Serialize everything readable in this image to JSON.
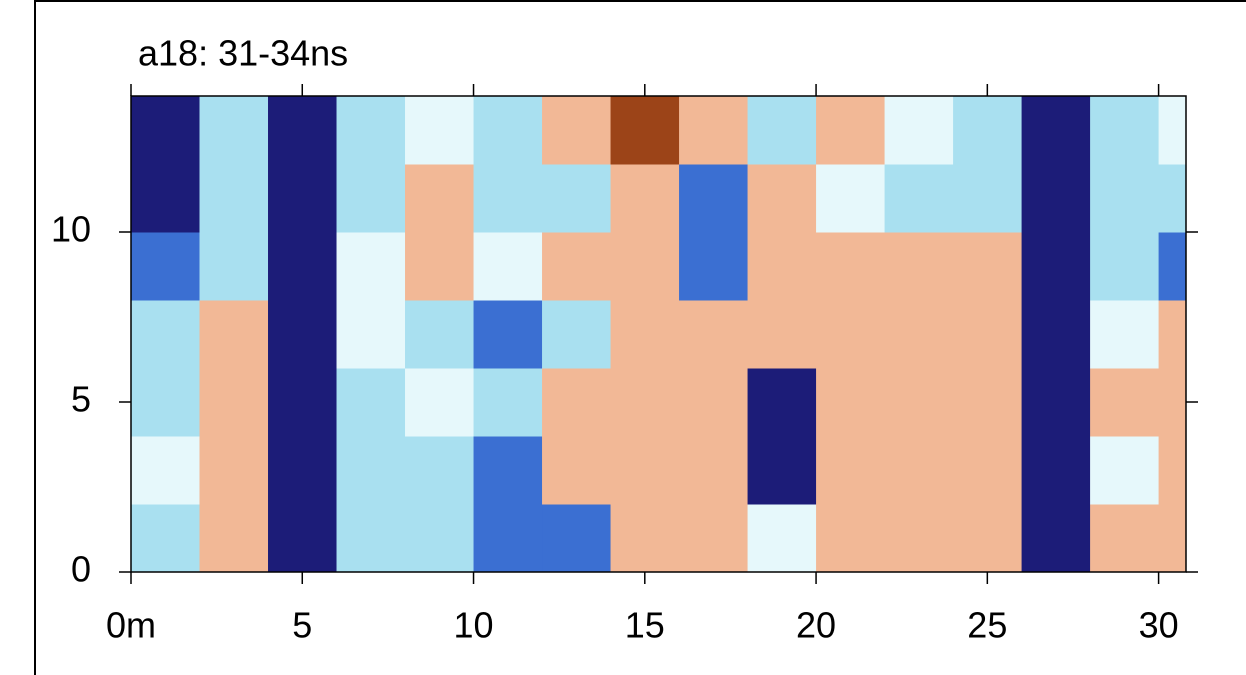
{
  "chart_data": {
    "type": "heatmap",
    "title": "a18: 31-34ns",
    "x_edges": [
      0,
      2,
      4,
      6,
      8,
      10,
      12,
      14,
      16,
      18,
      20,
      22,
      24,
      26,
      28,
      30,
      30.8
    ],
    "y_edges": [
      0,
      2,
      4,
      6,
      8,
      10,
      12,
      14
    ],
    "z": [
      [
        -1,
        1,
        -3,
        -1,
        -1,
        -2,
        -2,
        1,
        1,
        0,
        1,
        1,
        1,
        -3,
        1,
        1
      ],
      [
        0,
        1,
        -3,
        -1,
        -1,
        -2,
        1,
        1,
        1,
        -3,
        1,
        1,
        1,
        -3,
        0,
        1
      ],
      [
        -1,
        1,
        -3,
        -1,
        0,
        -1,
        1,
        1,
        1,
        -3,
        1,
        1,
        1,
        -3,
        1,
        1
      ],
      [
        -1,
        1,
        -3,
        0,
        -1,
        -2,
        -1,
        1,
        1,
        1,
        1,
        1,
        1,
        -3,
        0,
        1
      ],
      [
        -2,
        -1,
        -3,
        0,
        1,
        0,
        1,
        1,
        -2,
        1,
        1,
        1,
        1,
        -3,
        -1,
        -2
      ],
      [
        -3,
        -1,
        -3,
        -1,
        1,
        -1,
        -1,
        1,
        -2,
        1,
        0,
        -1,
        -1,
        -3,
        -1,
        -1
      ],
      [
        -3,
        -1,
        -3,
        -1,
        0,
        -1,
        1,
        3,
        1,
        -1,
        1,
        0,
        -1,
        -3,
        -1,
        0
      ]
    ],
    "levels": [
      -3,
      -2,
      -1,
      0,
      1,
      2,
      3
    ],
    "colors": [
      "#1c1c78",
      "#3b6fd2",
      "#a9e0f0",
      "#e6f8fb",
      "#f2b896",
      "#e3936a",
      "#9c4418"
    ],
    "xlim": [
      0,
      30.8
    ],
    "ylim": [
      0,
      14
    ],
    "xticks": [
      {
        "value": 0,
        "label": "0m"
      },
      5,
      10,
      15,
      20,
      25,
      30
    ],
    "yticks": [
      0,
      5,
      10
    ]
  }
}
